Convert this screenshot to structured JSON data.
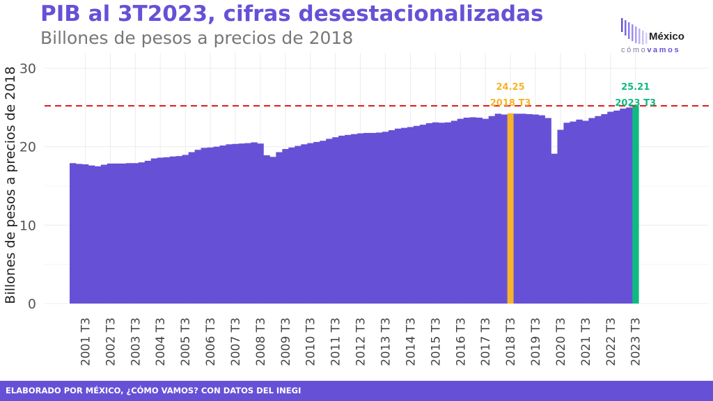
{
  "header": {
    "title": "PIB al 3T2023, cifras desestacionalizadas",
    "subtitle": "Billones de pesos a precios de 2018"
  },
  "logo": {
    "word1": "México",
    "word2a": "cómo",
    "word2b": "vamos"
  },
  "footer": {
    "text": "ELABORADO POR MÉXICO, ¿CÓMO VAMOS? CON DATOS DEL INEGI"
  },
  "colors": {
    "bar": "#6651d6",
    "highlight_2018": "#f7b32b",
    "highlight_2023": "#0fba81",
    "reference_line": "#e31a1c"
  },
  "chart_data": {
    "type": "bar",
    "title": "PIB al 3T2023, cifras desestacionalizadas",
    "subtitle": "Billones de pesos a precios de 2018",
    "ylabel": "Billones de pesos a precios de 2018",
    "xlabel": "",
    "ylim": [
      0,
      30
    ],
    "yticks": [
      0,
      10,
      20,
      30
    ],
    "xtick_labels": [
      "2001 T3",
      "2002 T3",
      "2003 T3",
      "2004 T3",
      "2005 T3",
      "2006 T3",
      "2007 T3",
      "2008 T3",
      "2009 T3",
      "2010 T3",
      "2011 T3",
      "2012 T3",
      "2013 T3",
      "2014 T3",
      "2015 T3",
      "2016 T3",
      "2017 T3",
      "2018 T3",
      "2019 T3",
      "2020 T3",
      "2021 T3",
      "2022 T3",
      "2023 T3"
    ],
    "reference_line": 25.21,
    "grid": true,
    "categories": [
      "2001 T1",
      "2001 T2",
      "2001 T3",
      "2001 T4",
      "2002 T1",
      "2002 T2",
      "2002 T3",
      "2002 T4",
      "2003 T1",
      "2003 T2",
      "2003 T3",
      "2003 T4",
      "2004 T1",
      "2004 T2",
      "2004 T3",
      "2004 T4",
      "2005 T1",
      "2005 T2",
      "2005 T3",
      "2005 T4",
      "2006 T1",
      "2006 T2",
      "2006 T3",
      "2006 T4",
      "2007 T1",
      "2007 T2",
      "2007 T3",
      "2007 T4",
      "2008 T1",
      "2008 T2",
      "2008 T3",
      "2008 T4",
      "2009 T1",
      "2009 T2",
      "2009 T3",
      "2009 T4",
      "2010 T1",
      "2010 T2",
      "2010 T3",
      "2010 T4",
      "2011 T1",
      "2011 T2",
      "2011 T3",
      "2011 T4",
      "2012 T1",
      "2012 T2",
      "2012 T3",
      "2012 T4",
      "2013 T1",
      "2013 T2",
      "2013 T3",
      "2013 T4",
      "2014 T1",
      "2014 T2",
      "2014 T3",
      "2014 T4",
      "2015 T1",
      "2015 T2",
      "2015 T3",
      "2015 T4",
      "2016 T1",
      "2016 T2",
      "2016 T3",
      "2016 T4",
      "2017 T1",
      "2017 T2",
      "2017 T3",
      "2017 T4",
      "2018 T1",
      "2018 T2",
      "2018 T3",
      "2018 T4",
      "2019 T1",
      "2019 T2",
      "2019 T3",
      "2019 T4",
      "2020 T1",
      "2020 T2",
      "2020 T3",
      "2020 T4",
      "2021 T1",
      "2021 T2",
      "2021 T3",
      "2021 T4",
      "2022 T1",
      "2022 T2",
      "2022 T3",
      "2022 T4",
      "2023 T1",
      "2023 T2",
      "2023 T3"
    ],
    "values": [
      17.9,
      17.8,
      17.75,
      17.6,
      17.5,
      17.7,
      17.85,
      17.85,
      17.85,
      17.9,
      17.9,
      18.0,
      18.2,
      18.5,
      18.6,
      18.65,
      18.75,
      18.8,
      18.95,
      19.3,
      19.6,
      19.85,
      19.9,
      20.0,
      20.15,
      20.3,
      20.35,
      20.4,
      20.45,
      20.55,
      20.4,
      18.9,
      18.7,
      19.3,
      19.7,
      19.9,
      20.1,
      20.3,
      20.45,
      20.6,
      20.75,
      21.0,
      21.2,
      21.4,
      21.5,
      21.6,
      21.7,
      21.75,
      21.75,
      21.8,
      21.9,
      22.1,
      22.3,
      22.4,
      22.5,
      22.65,
      22.8,
      23.0,
      23.1,
      23.05,
      23.1,
      23.3,
      23.55,
      23.7,
      23.75,
      23.7,
      23.55,
      23.9,
      24.2,
      24.1,
      24.25,
      24.2,
      24.2,
      24.15,
      24.1,
      24.0,
      23.65,
      19.1,
      22.15,
      23.05,
      23.2,
      23.45,
      23.3,
      23.65,
      23.9,
      24.15,
      24.45,
      24.6,
      24.85,
      25.0,
      25.21
    ],
    "highlights": [
      {
        "category": "2018 T3",
        "value": 24.25,
        "value_label": "24.25",
        "label": "2018 T3",
        "color": "#f7b32b"
      },
      {
        "category": "2023 T3",
        "value": 25.21,
        "value_label": "25.21",
        "label": "2023 T3",
        "color": "#0fba81"
      }
    ]
  }
}
